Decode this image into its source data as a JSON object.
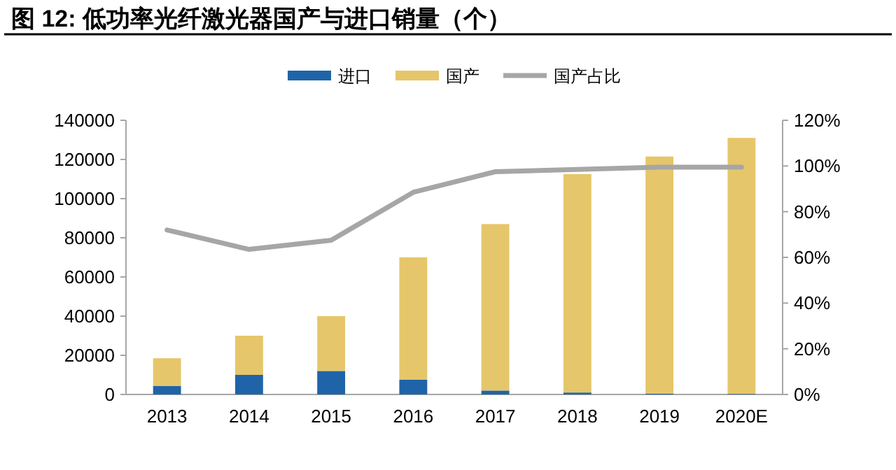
{
  "chart_data": {
    "type": "bar",
    "title": "图 12: 低功率光纤激光器国产与进口销量（个）",
    "categories": [
      "2013",
      "2014",
      "2015",
      "2016",
      "2017",
      "2018",
      "2019",
      "2020E"
    ],
    "stacked": true,
    "series": [
      {
        "name": "进口",
        "color": "#1f64a8",
        "values": [
          4300,
          10000,
          12000,
          7500,
          2000,
          1000,
          500,
          300
        ]
      },
      {
        "name": "国产",
        "color": "#e6c66a",
        "values": [
          14200,
          20000,
          28000,
          62500,
          85000,
          111500,
          121000,
          130700
        ]
      },
      {
        "name": "国产占比",
        "type": "line",
        "axis": "y2",
        "color": "#a6a6a6",
        "values": [
          72,
          63.5,
          67.5,
          88.5,
          97.5,
          98.5,
          99.5,
          99.5
        ]
      }
    ],
    "ylim": [
      0,
      140000
    ],
    "yticks": [
      0,
      20000,
      40000,
      60000,
      80000,
      100000,
      120000,
      140000
    ],
    "y2lim": [
      0,
      120
    ],
    "y2ticks": [
      {
        "value": 0,
        "label": "0%"
      },
      {
        "value": 20,
        "label": "20%"
      },
      {
        "value": 40,
        "label": "40%"
      },
      {
        "value": 60,
        "label": "60%"
      },
      {
        "value": 80,
        "label": "80%"
      },
      {
        "value": 100,
        "label": "100%"
      },
      {
        "value": 120,
        "label": "120%"
      }
    ],
    "legend": "top",
    "grid": false
  }
}
